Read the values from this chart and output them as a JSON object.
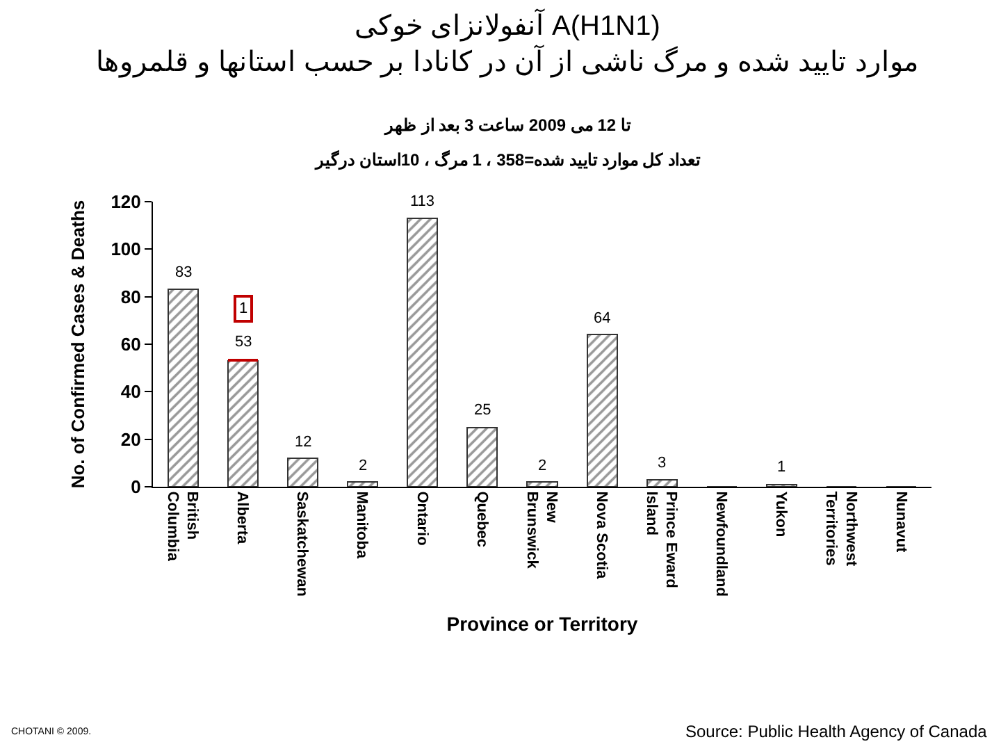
{
  "chart_data": {
    "type": "bar",
    "stacked": true,
    "title": "آنفولانزای خوکی A(H1N1)\nموارد تایید شده و مرگ ناشی از آن در کانادا بر حسب استانها و قلمروها",
    "subtitle": "تا 12 می 2009 ساعت 3 بعد از ظهر\nتعداد کل موارد تایید شده=358 ، 1 مرگ ، 10استان درگیر",
    "xlabel": "Province or Territory",
    "ylabel": "No. of Confirmed Cases & Deaths",
    "categories": [
      "British Columbia",
      "Alberta",
      "Saskatchewan",
      "Manitoba",
      "Ontario",
      "Quebec",
      "New Brunswick",
      "Nova Scotia",
      "Prince Eward Island",
      "Newfoundland",
      "Yukon",
      "Northwest Territories",
      "Nunavut"
    ],
    "series": [
      {
        "color": "#333333",
        "values": [
          83,
          53,
          12,
          2,
          113,
          25,
          2,
          64,
          3,
          0,
          1,
          0,
          0
        ],
        "value_labels": [
          "83",
          "53",
          "12",
          "2",
          "113",
          "25",
          "2",
          "64",
          "3",
          null,
          "1",
          null,
          null
        ]
      },
      {
        "color": "#c00000",
        "values": [
          0,
          1,
          0,
          0,
          0,
          0,
          0,
          0,
          0,
          0,
          0,
          0,
          0
        ],
        "value_labels": [
          null,
          "1",
          null,
          null,
          null,
          null,
          null,
          null,
          null,
          null,
          null,
          null,
          null
        ]
      }
    ],
    "ylim": [
      0,
      120
    ],
    "yticks": [
      0,
      20,
      40,
      60,
      80,
      100,
      120
    ],
    "annotations": [
      "CHOTANI © 2009.",
      "Source: Public Health Agency of Canada"
    ]
  }
}
